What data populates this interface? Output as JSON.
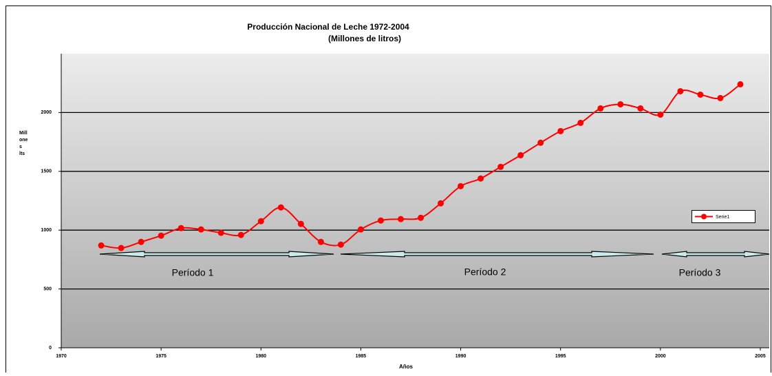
{
  "chart_data": {
    "type": "line",
    "title": "Producción Nacional de Leche 1972-2004",
    "subtitle": "(Millones de litros)",
    "x_label": "Años",
    "y_label": [
      "Mill",
      "one",
      "s",
      "lts"
    ],
    "x": [
      1972,
      1973,
      1974,
      1975,
      1976,
      1977,
      1978,
      1979,
      1980,
      1981,
      1982,
      1983,
      1984,
      1985,
      1986,
      1987,
      1988,
      1989,
      1990,
      1991,
      1992,
      1993,
      1994,
      1995,
      1996,
      1997,
      1998,
      1999,
      2000,
      2001,
      2002,
      2003,
      2004
    ],
    "series": [
      {
        "name": "Serie1",
        "color": "#ff0000",
        "values": [
          870,
          848,
          900,
          953,
          1017,
          1006,
          977,
          959,
          1076,
          1193,
          1053,
          900,
          877,
          1006,
          1082,
          1094,
          1105,
          1228,
          1374,
          1439,
          1538,
          1637,
          1743,
          1842,
          1912,
          2035,
          2070,
          2035,
          1982,
          2181,
          2152,
          2123,
          2240
        ]
      }
    ],
    "xlim": [
      1970,
      2005
    ],
    "xticks": [
      1970,
      1975,
      1980,
      1985,
      1990,
      1995,
      2000,
      2005
    ],
    "ylim": [
      0,
      2500
    ],
    "yticks": [
      0,
      500,
      1000,
      1500,
      2000
    ],
    "grid": true,
    "annotations": [
      "Período 1",
      "Período 2",
      "Período 3"
    ]
  }
}
